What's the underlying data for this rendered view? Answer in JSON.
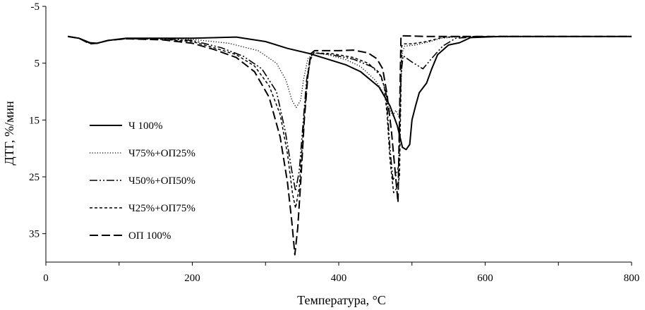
{
  "chart_data": {
    "type": "line",
    "title": "",
    "xlabel": "Температура, °C",
    "ylabel": "ДТГ, %/мин",
    "xlim": [
      0,
      800
    ],
    "ylim": [
      -5,
      40
    ],
    "y_inverted": true,
    "grid": false,
    "legend_position": "left-center",
    "x_ticks": [
      "0",
      "200",
      "400",
      "600",
      "800"
    ],
    "x_tick_values": [
      0,
      200,
      400,
      600,
      800
    ],
    "y_ticks": [
      "-5",
      "5",
      "15",
      "25",
      "35"
    ],
    "y_tick_values": [
      -5,
      5,
      15,
      25,
      35
    ],
    "series": [
      {
        "name": "Ч 100%",
        "style": "solid",
        "points": [
          [
            30,
            0.3
          ],
          [
            45,
            0.6
          ],
          [
            60,
            1.4
          ],
          [
            70,
            1.5
          ],
          [
            85,
            1.0
          ],
          [
            110,
            0.6
          ],
          [
            150,
            0.6
          ],
          [
            200,
            0.6
          ],
          [
            260,
            0.4
          ],
          [
            300,
            1.2
          ],
          [
            330,
            2.4
          ],
          [
            360,
            3.3
          ],
          [
            380,
            4.1
          ],
          [
            410,
            5.3
          ],
          [
            430,
            6.5
          ],
          [
            455,
            9.2
          ],
          [
            470,
            12.5
          ],
          [
            480,
            16.0
          ],
          [
            487,
            19.8
          ],
          [
            492,
            20.2
          ],
          [
            497,
            19.3
          ],
          [
            500,
            15.0
          ],
          [
            505,
            12.5
          ],
          [
            510,
            10.2
          ],
          [
            520,
            8.5
          ],
          [
            527,
            6.0
          ],
          [
            535,
            3.5
          ],
          [
            550,
            1.8
          ],
          [
            565,
            1.4
          ],
          [
            580,
            0.5
          ],
          [
            620,
            0.3
          ],
          [
            800,
            0.3
          ]
        ]
      },
      {
        "name": "Ч75%+ОП25%",
        "style": "dotted",
        "points": [
          [
            30,
            0.3
          ],
          [
            45,
            0.6
          ],
          [
            60,
            1.5
          ],
          [
            70,
            1.5
          ],
          [
            85,
            1.0
          ],
          [
            110,
            0.6
          ],
          [
            160,
            0.6
          ],
          [
            200,
            0.8
          ],
          [
            250,
            1.5
          ],
          [
            290,
            2.8
          ],
          [
            315,
            5.0
          ],
          [
            328,
            8.0
          ],
          [
            336,
            11.5
          ],
          [
            342,
            12.8
          ],
          [
            348,
            11.5
          ],
          [
            352,
            7.8
          ],
          [
            358,
            4.2
          ],
          [
            366,
            3.2
          ],
          [
            385,
            3.5
          ],
          [
            410,
            4.4
          ],
          [
            430,
            5.6
          ],
          [
            450,
            8.0
          ],
          [
            460,
            10.0
          ],
          [
            468,
            12.8
          ],
          [
            474,
            14.2
          ],
          [
            478,
            13.3
          ],
          [
            483,
            14.6
          ],
          [
            487,
            3.0
          ],
          [
            490,
            2.0
          ],
          [
            505,
            1.8
          ],
          [
            515,
            1.5
          ],
          [
            525,
            1.2
          ],
          [
            540,
            0.6
          ],
          [
            560,
            0.4
          ],
          [
            800,
            0.3
          ]
        ]
      },
      {
        "name": "Ч50%+ОП50%",
        "style": "dash-dot",
        "points": [
          [
            30,
            0.3
          ],
          [
            45,
            0.6
          ],
          [
            60,
            1.5
          ],
          [
            70,
            1.5
          ],
          [
            85,
            1.0
          ],
          [
            110,
            0.7
          ],
          [
            160,
            0.7
          ],
          [
            200,
            1.0
          ],
          [
            240,
            2.3
          ],
          [
            270,
            3.8
          ],
          [
            295,
            6.0
          ],
          [
            315,
            10.0
          ],
          [
            327,
            17.0
          ],
          [
            336,
            24.0
          ],
          [
            341,
            27.5
          ],
          [
            346,
            24.0
          ],
          [
            351,
            16.0
          ],
          [
            356,
            8.0
          ],
          [
            361,
            4.0
          ],
          [
            366,
            3.2
          ],
          [
            390,
            3.5
          ],
          [
            420,
            4.3
          ],
          [
            445,
            5.6
          ],
          [
            458,
            7.3
          ],
          [
            465,
            10.5
          ],
          [
            470,
            20.0
          ],
          [
            474,
            25.5
          ],
          [
            478,
            24.8
          ],
          [
            482,
            23.0
          ],
          [
            485,
            7.0
          ],
          [
            488,
            3.7
          ],
          [
            500,
            4.8
          ],
          [
            515,
            6.0
          ],
          [
            528,
            4.0
          ],
          [
            542,
            2.0
          ],
          [
            560,
            0.6
          ],
          [
            600,
            0.3
          ],
          [
            800,
            0.3
          ]
        ]
      },
      {
        "name": "Ч25%+ОП75%",
        "style": "dashed-short",
        "points": [
          [
            30,
            0.3
          ],
          [
            45,
            0.6
          ],
          [
            60,
            1.5
          ],
          [
            70,
            1.5
          ],
          [
            85,
            1.0
          ],
          [
            110,
            0.7
          ],
          [
            160,
            0.8
          ],
          [
            200,
            1.2
          ],
          [
            230,
            2.3
          ],
          [
            260,
            3.5
          ],
          [
            285,
            5.5
          ],
          [
            305,
            9.0
          ],
          [
            320,
            14.0
          ],
          [
            330,
            21.0
          ],
          [
            337,
            28.0
          ],
          [
            341,
            30.5
          ],
          [
            346,
            27.0
          ],
          [
            351,
            18.0
          ],
          [
            356,
            9.0
          ],
          [
            361,
            4.5
          ],
          [
            366,
            3.2
          ],
          [
            390,
            3.3
          ],
          [
            420,
            4.0
          ],
          [
            440,
            5.0
          ],
          [
            455,
            6.6
          ],
          [
            462,
            9.0
          ],
          [
            466,
            14.0
          ],
          [
            470,
            22.0
          ],
          [
            475,
            27.8
          ],
          [
            479,
            27.0
          ],
          [
            483,
            25.0
          ],
          [
            486,
            2.0
          ],
          [
            489,
            1.6
          ],
          [
            500,
            1.6
          ],
          [
            520,
            1.2
          ],
          [
            540,
            0.5
          ],
          [
            560,
            0.3
          ],
          [
            800,
            0.3
          ]
        ]
      },
      {
        "name": "ОП 100%",
        "style": "dashed-long",
        "points": [
          [
            30,
            0.3
          ],
          [
            45,
            0.6
          ],
          [
            60,
            1.6
          ],
          [
            70,
            1.5
          ],
          [
            85,
            1.0
          ],
          [
            110,
            0.7
          ],
          [
            160,
            0.9
          ],
          [
            200,
            1.5
          ],
          [
            230,
            2.6
          ],
          [
            260,
            4.0
          ],
          [
            285,
            6.5
          ],
          [
            305,
            11.0
          ],
          [
            320,
            18.0
          ],
          [
            330,
            26.0
          ],
          [
            336,
            33.0
          ],
          [
            340,
            38.7
          ],
          [
            344,
            34.0
          ],
          [
            348,
            26.0
          ],
          [
            353,
            15.0
          ],
          [
            358,
            7.0
          ],
          [
            362,
            3.3
          ],
          [
            367,
            2.8
          ],
          [
            400,
            2.8
          ],
          [
            420,
            2.7
          ],
          [
            432,
            3.0
          ],
          [
            440,
            3.2
          ],
          [
            452,
            4.2
          ],
          [
            460,
            6.0
          ],
          [
            466,
            10.5
          ],
          [
            472,
            17.0
          ],
          [
            477,
            24.0
          ],
          [
            481,
            29.5
          ],
          [
            485,
            0.2
          ],
          [
            490,
            0.2
          ],
          [
            520,
            0.3
          ],
          [
            800,
            0.3
          ]
        ]
      }
    ]
  }
}
